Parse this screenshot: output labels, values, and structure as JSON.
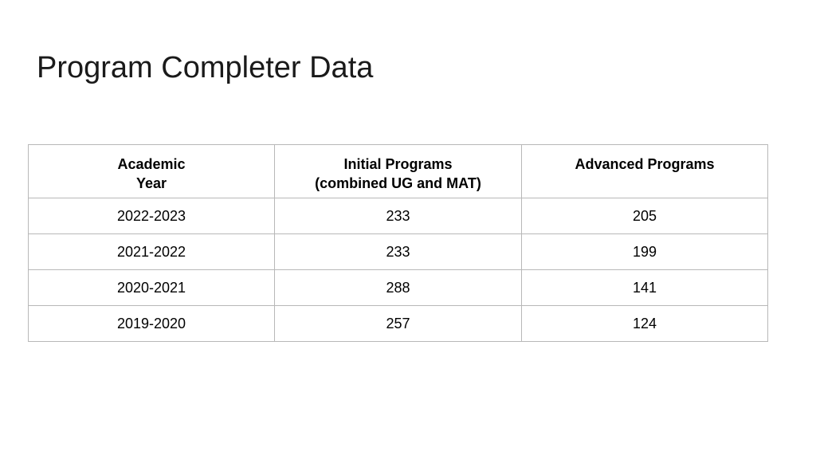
{
  "title": "Program Completer Data",
  "table": {
    "headers": [
      [
        "Academic",
        "Year"
      ],
      [
        "Initial Programs",
        "(combined UG and MAT)"
      ],
      [
        "Advanced Programs"
      ]
    ],
    "rows": [
      [
        "2022-2023",
        "233",
        "205"
      ],
      [
        "2021-2022",
        "233",
        "199"
      ],
      [
        "2020-2021",
        "288",
        "141"
      ],
      [
        "2019-2020",
        "257",
        "124"
      ]
    ]
  }
}
